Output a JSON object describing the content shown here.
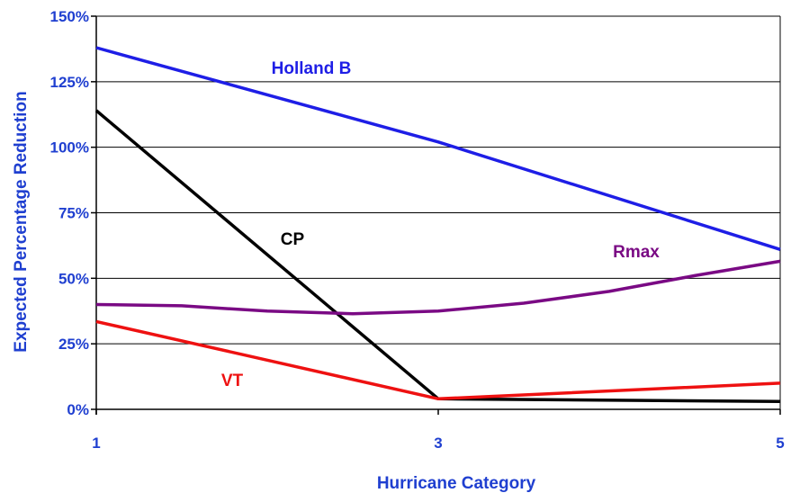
{
  "chart_data": {
    "type": "line",
    "title": "",
    "xlabel": "Hurricane Category",
    "ylabel": "Expected Percentage Reduction",
    "x_ticks": [
      "1",
      "3",
      "5"
    ],
    "y_ticks": [
      "0%",
      "25%",
      "50%",
      "75%",
      "100%",
      "125%",
      "150%"
    ],
    "xlim": [
      1,
      5
    ],
    "ylim": [
      0,
      150
    ],
    "grid": "horizontal",
    "legend": "none",
    "colors": {
      "axis_text": "#1f3fd0",
      "gridline": "#000000"
    },
    "series": [
      {
        "name": "Holland B",
        "color": "#1e1ee6",
        "x": [
          1,
          3,
          5
        ],
        "y": [
          138,
          102,
          61
        ]
      },
      {
        "name": "CP",
        "color": "#000000",
        "x": [
          1,
          3,
          5
        ],
        "y": [
          114,
          4,
          3
        ]
      },
      {
        "name": "Rmax",
        "color": "#7a0a84",
        "x": [
          1,
          1.5,
          2,
          2.5,
          3,
          3.5,
          4,
          4.5,
          5
        ],
        "y": [
          40,
          39.5,
          37.5,
          36.5,
          37.5,
          40.5,
          45,
          51,
          56.5
        ]
      },
      {
        "name": "VT",
        "color": "#ee1111",
        "x": [
          1,
          3,
          5
        ],
        "y": [
          33.5,
          4,
          10
        ]
      }
    ]
  }
}
